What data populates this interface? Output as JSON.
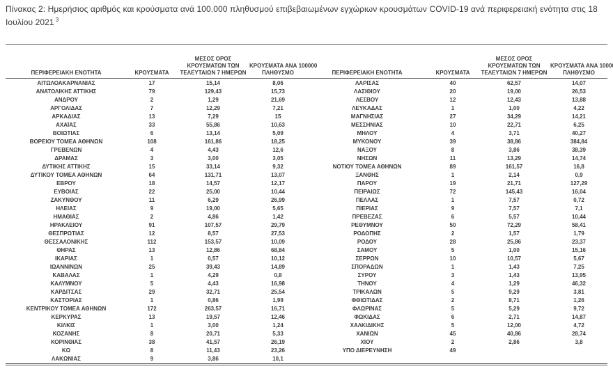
{
  "title": {
    "text": "Πίνακας 2:  Ημερήσιος αριθμός και κρούσματα ανά 100.000 πληθυσμού επιβεβαιωμένων εγχώριων κρουσμάτων COVID-19 ανά περιφερειακή ενότητα στις 18 Ιουλίου 2021",
    "superscript": "3"
  },
  "columns": [
    {
      "id": "region",
      "lines": [
        "ΠΕΡΙΦΕΡΕΙΑΚΗ ΕΝΟΤΗΤΑ"
      ]
    },
    {
      "id": "cases",
      "lines": [
        "ΚΡΟΥΣΜΑΤΑ"
      ]
    },
    {
      "id": "avg7",
      "lines": [
        "ΜΕΣΟΣ ΟΡΟΣ",
        "ΚΡΟΥΣΜΑΤΩΝ ΤΩΝ",
        "ΤΕΛΕΥΤΑΙΩΝ 7 ΗΜΕΡΩΝ"
      ]
    },
    {
      "id": "per100k",
      "lines": [
        "ΚΡΟΥΣΜΑΤΑ ΑΝΑ 100000",
        "ΠΛΗΘΥΣΜΟ"
      ]
    }
  ],
  "rows_left": [
    [
      "ΑΙΤΩΛΟΑΚΑΡΝΑΝΙΑΣ",
      "17",
      "15,14",
      "8,06"
    ],
    [
      "ΑΝΑΤΟΛΙΚΗΣ ΑΤΤΙΚΗΣ",
      "79",
      "129,43",
      "15,73"
    ],
    [
      "ΑΝΔΡΟΥ",
      "2",
      "1,29",
      "21,69"
    ],
    [
      "ΑΡΓΟΛΙΔΑΣ",
      "7",
      "12,29",
      "7,21"
    ],
    [
      "ΑΡΚΑΔΙΑΣ",
      "13",
      "7,29",
      "15"
    ],
    [
      "ΑΧΑΪΑΣ",
      "33",
      "55,86",
      "10,63"
    ],
    [
      "ΒΟΙΩΤΙΑΣ",
      "6",
      "13,14",
      "5,09"
    ],
    [
      "ΒΟΡΕΙΟΥ ΤΟΜΕΑ ΑΘΗΝΩΝ",
      "108",
      "161,86",
      "18,25"
    ],
    [
      "ΓΡΕΒΕΝΩΝ",
      "4",
      "4,43",
      "12,6"
    ],
    [
      "ΔΡΑΜΑΣ",
      "3",
      "3,00",
      "3,05"
    ],
    [
      "ΔΥΤΙΚΗΣ ΑΤΤΙΚΗΣ",
      "15",
      "33,14",
      "9,32"
    ],
    [
      "ΔΥΤΙΚΟΥ ΤΟΜΕΑ ΑΘΗΝΩΝ",
      "64",
      "131,71",
      "13,07"
    ],
    [
      "ΕΒΡΟΥ",
      "18",
      "14,57",
      "12,17"
    ],
    [
      "ΕΥΒΟΙΑΣ",
      "22",
      "25,00",
      "10,44"
    ],
    [
      "ΖΑΚΥΝΘΟΥ",
      "11",
      "6,29",
      "26,99"
    ],
    [
      "ΗΛΕΙΑΣ",
      "9",
      "19,00",
      "5,65"
    ],
    [
      "ΗΜΑΘΙΑΣ",
      "2",
      "4,86",
      "1,42"
    ],
    [
      "ΗΡΑΚΛΕΙΟΥ",
      "91",
      "107,57",
      "29,79"
    ],
    [
      "ΘΕΣΠΡΩΤΙΑΣ",
      "12",
      "8,57",
      "27,53"
    ],
    [
      "ΘΕΣΣΑΛΟΝΙΚΗΣ",
      "112",
      "153,57",
      "10,09"
    ],
    [
      "ΘΗΡΑΣ",
      "13",
      "12,86",
      "68,84"
    ],
    [
      "ΙΚΑΡΙΑΣ",
      "1",
      "0,57",
      "10,12"
    ],
    [
      "ΙΩΑΝΝΙΝΩΝ",
      "25",
      "39,43",
      "14,89"
    ],
    [
      "ΚΑΒΑΛΑΣ",
      "1",
      "4,29",
      "0,8"
    ],
    [
      "ΚΑΛΥΜΝΟΥ",
      "5",
      "4,43",
      "16,98"
    ],
    [
      "ΚΑΡΔΙΤΣΑΣ",
      "29",
      "32,71",
      "25,54"
    ],
    [
      "ΚΑΣΤΟΡΙΑΣ",
      "1",
      "0,86",
      "1,99"
    ],
    [
      "ΚΕΝΤΡΙΚΟΥ ΤΟΜΕΑ ΑΘΗΝΩΝ",
      "172",
      "263,57",
      "16,71"
    ],
    [
      "ΚΕΡΚΥΡΑΣ",
      "13",
      "19,57",
      "12,46"
    ],
    [
      "ΚΙΛΚΙΣ",
      "1",
      "3,00",
      "1,24"
    ],
    [
      "ΚΟΖΑΝΗΣ",
      "8",
      "20,71",
      "5,33"
    ],
    [
      "ΚΟΡΙΝΘΙΑΣ",
      "38",
      "41,57",
      "26,19"
    ],
    [
      "ΚΩ",
      "8",
      "11,43",
      "23,26"
    ],
    [
      "ΛΑΚΩΝΙΑΣ",
      "9",
      "3,86",
      "10,1"
    ]
  ],
  "rows_right": [
    [
      "ΛΑΡΙΣΑΣ",
      "40",
      "62,57",
      "14,07"
    ],
    [
      "ΛΑΣΙΘΙΟΥ",
      "20",
      "19,00",
      "26,53"
    ],
    [
      "ΛΕΣΒΟΥ",
      "12",
      "12,43",
      "13,88"
    ],
    [
      "ΛΕΥΚΑΔΑΣ",
      "1",
      "1,00",
      "4,22"
    ],
    [
      "ΜΑΓΝΗΣΙΑΣ",
      "27",
      "34,29",
      "14,21"
    ],
    [
      "ΜΕΣΣΗΝΙΑΣ",
      "10",
      "22,71",
      "6,25"
    ],
    [
      "ΜΗΛΟΥ",
      "4",
      "3,71",
      "40,27"
    ],
    [
      "ΜΥΚΟΝΟΥ",
      "39",
      "38,86",
      "384,84"
    ],
    [
      "ΝΑΞΟΥ",
      "8",
      "3,86",
      "38,39"
    ],
    [
      "ΝΗΣΩΝ",
      "11",
      "13,29",
      "14,74"
    ],
    [
      "ΝΟΤΙΟΥ ΤΟΜΕΑ ΑΘΗΝΩΝ",
      "89",
      "161,57",
      "16,8"
    ],
    [
      "ΞΑΝΘΗΣ",
      "1",
      "2,14",
      "0,9"
    ],
    [
      "ΠΑΡΟΥ",
      "19",
      "21,71",
      "127,29"
    ],
    [
      "ΠΕΙΡΑΙΩΣ",
      "72",
      "145,43",
      "16,04"
    ],
    [
      "ΠΕΛΛΑΣ",
      "1",
      "7,57",
      "0,72"
    ],
    [
      "ΠΙΕΡΙΑΣ",
      "9",
      "7,57",
      "7,1"
    ],
    [
      "ΠΡΕΒΕΖΑΣ",
      "6",
      "5,57",
      "10,44"
    ],
    [
      "ΡΕΘΥΜΝΟΥ",
      "50",
      "72,29",
      "58,41"
    ],
    [
      "ΡΟΔΟΠΗΣ",
      "2",
      "1,57",
      "1,79"
    ],
    [
      "ΡΟΔΟΥ",
      "28",
      "25,86",
      "23,37"
    ],
    [
      "ΣΑΜΟΥ",
      "5",
      "1,00",
      "15,16"
    ],
    [
      "ΣΕΡΡΩΝ",
      "10",
      "10,57",
      "5,67"
    ],
    [
      "ΣΠΟΡΑΔΩΝ",
      "1",
      "1,43",
      "7,25"
    ],
    [
      "ΣΥΡΟΥ",
      "3",
      "1,43",
      "13,95"
    ],
    [
      "ΤΗΝΟΥ",
      "4",
      "1,29",
      "46,32"
    ],
    [
      "ΤΡΙΚΑΛΩΝ",
      "5",
      "9,29",
      "3,81"
    ],
    [
      "ΦΘΙΩΤΙΔΑΣ",
      "2",
      "8,71",
      "1,26"
    ],
    [
      "ΦΛΩΡΙΝΑΣ",
      "5",
      "5,29",
      "9,72"
    ],
    [
      "ΦΩΚΙΔΑΣ",
      "6",
      "2,71",
      "14,87"
    ],
    [
      "ΧΑΛΚΙΔΙΚΗΣ",
      "5",
      "12,00",
      "4,72"
    ],
    [
      "ΧΑΝΙΩΝ",
      "45",
      "40,86",
      "28,74"
    ],
    [
      "ΧΙΟΥ",
      "2",
      "2,86",
      "3,8"
    ],
    [
      "ΥΠΟ ΔΙΕΡΕΥΝΗΣΗ",
      "49",
      "",
      ""
    ]
  ],
  "colors": {
    "text": "#3d3d3d",
    "rule": "#5c5c5c",
    "background": "#ffffff"
  }
}
